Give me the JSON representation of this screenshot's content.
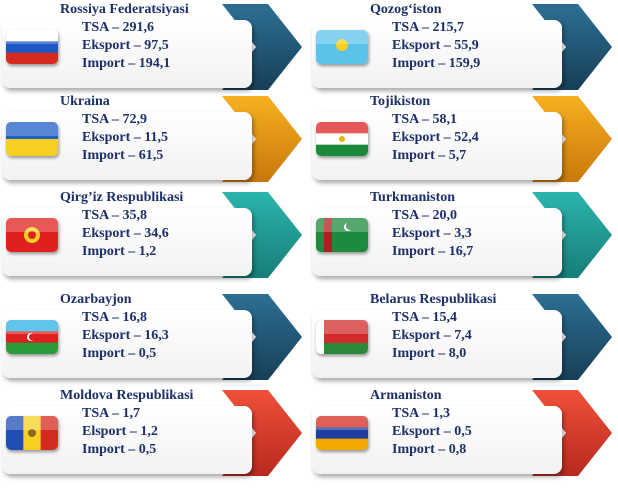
{
  "countries": [
    {
      "name": "Rossiya Federatsiyasi",
      "lines": [
        "TSA – 291,6",
        "Eksport – 97,5",
        "Import – 194,1"
      ]
    },
    {
      "name": "Qozog‘iston",
      "lines": [
        "TSA – 215,7",
        "Eksport – 55,9",
        "Import – 159,9"
      ]
    },
    {
      "name": "Ukraina",
      "lines": [
        "TSA – 72,9",
        "Eksport – 11,5",
        "Import – 61,5"
      ]
    },
    {
      "name": "Tojikiston",
      "lines": [
        "TSA – 58,1",
        "Eksport – 52,4",
        "Import – 5,7"
      ]
    },
    {
      "name": "Qirg’iz Respublikasi",
      "lines": [
        "TSA – 35,8",
        "Eksport – 34,6",
        "Import – 1,2"
      ]
    },
    {
      "name": "Turkmaniston",
      "lines": [
        "TSA – 20,0",
        "Eksport – 3,3",
        "Import – 16,7"
      ]
    },
    {
      "name": "Ozarbayjon",
      "lines": [
        "TSA – 16,8",
        "Eksport – 16,3",
        "Import – 0,5"
      ]
    },
    {
      "name": "Belarus Respublikasi",
      "lines": [
        "TSA – 15,4",
        "Eksport – 7,4",
        "Import – 8,0"
      ]
    },
    {
      "name": "Moldova Respublikasi",
      "lines": [
        "TSA – 1,7",
        "Elsport – 1,2",
        "Import – 0,5"
      ]
    },
    {
      "name": "Armaniston",
      "lines": [
        "TSA – 1,3",
        "Eksport – 0,5",
        "Import – 0,8"
      ]
    }
  ]
}
